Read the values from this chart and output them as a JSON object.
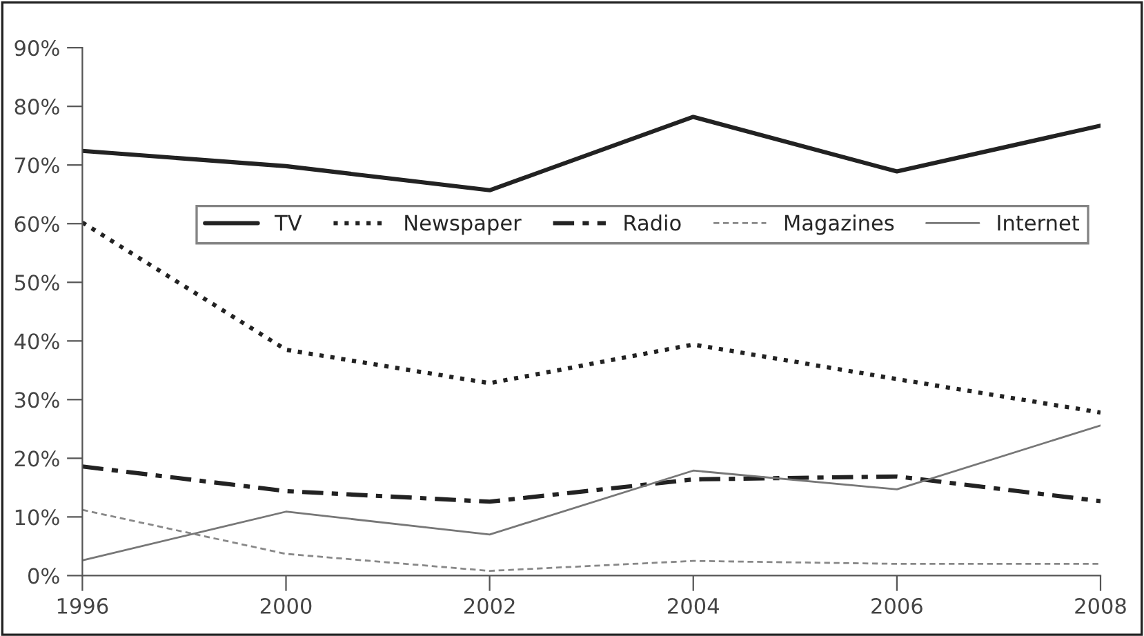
{
  "chart_data": {
    "type": "line",
    "categories": [
      "1996",
      "2000",
      "2002",
      "2004",
      "2006",
      "2008"
    ],
    "series": [
      {
        "name": "TV",
        "color": "#222222",
        "line_style": "solid",
        "values": [
          72.4,
          69.8,
          65.7,
          78.2,
          68.9,
          76.7
        ]
      },
      {
        "name": "Newspaper",
        "color": "#222222",
        "line_style": "dotted",
        "values": [
          60.2,
          38.5,
          32.8,
          39.4,
          33.5,
          27.8
        ]
      },
      {
        "name": "Radio",
        "color": "#222222",
        "line_style": "dashdot",
        "values": [
          18.6,
          14.4,
          12.6,
          16.4,
          16.9,
          12.7
        ]
      },
      {
        "name": "Magazines",
        "color": "#888888",
        "line_style": "dashed",
        "values": [
          11.2,
          3.7,
          0.8,
          2.5,
          2.0,
          2.0
        ]
      },
      {
        "name": "Internet",
        "color": "#777777",
        "line_style": "solid",
        "values": [
          2.6,
          10.9,
          7.0,
          17.9,
          14.7,
          25.6
        ]
      }
    ],
    "ylim": [
      0,
      90
    ],
    "yticks": [
      {
        "value": 0,
        "label": "0%"
      },
      {
        "value": 10,
        "label": "10%"
      },
      {
        "value": 20,
        "label": "20%"
      },
      {
        "value": 30,
        "label": "30%"
      },
      {
        "value": 40,
        "label": "40%"
      },
      {
        "value": 50,
        "label": "50%"
      },
      {
        "value": 60,
        "label": "60%"
      },
      {
        "value": 70,
        "label": "70%"
      },
      {
        "value": 80,
        "label": "80%"
      },
      {
        "value": 90,
        "label": "90%"
      }
    ],
    "grid": false,
    "legend": "top",
    "marker": "none"
  }
}
